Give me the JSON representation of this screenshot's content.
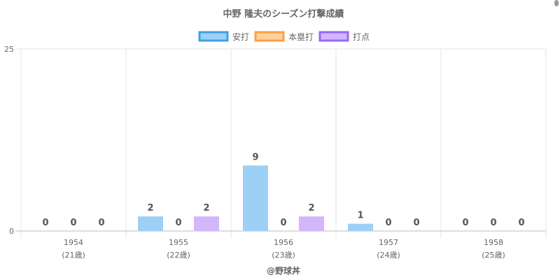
{
  "chart_data": {
    "type": "bar",
    "title": "中野 隆夫のシーズン打撃成績",
    "categories": [
      "1954",
      "1955",
      "1956",
      "1957",
      "1958"
    ],
    "category_sublabels": [
      "(21歳)",
      "(22歳)",
      "(23歳)",
      "(24歳)",
      "(25歳)"
    ],
    "series": [
      {
        "name": "安打",
        "values": [
          0,
          2,
          9,
          1,
          0
        ],
        "fill": "#9ecff5",
        "stroke": "#3ea0e4"
      },
      {
        "name": "本塁打",
        "values": [
          0,
          0,
          0,
          0,
          0
        ],
        "fill": "#ffcf9f",
        "stroke": "#ff9f40"
      },
      {
        "name": "打点",
        "values": [
          0,
          2,
          2,
          0,
          0
        ],
        "fill": "#d2b8fb",
        "stroke": "#9966ff"
      }
    ],
    "ylim": [
      0,
      25
    ],
    "yticks": [
      "0",
      "25"
    ],
    "grid": true,
    "legend_position": "top",
    "data_labels": true,
    "xlabel": "@野球丼",
    "ylabel": ""
  }
}
